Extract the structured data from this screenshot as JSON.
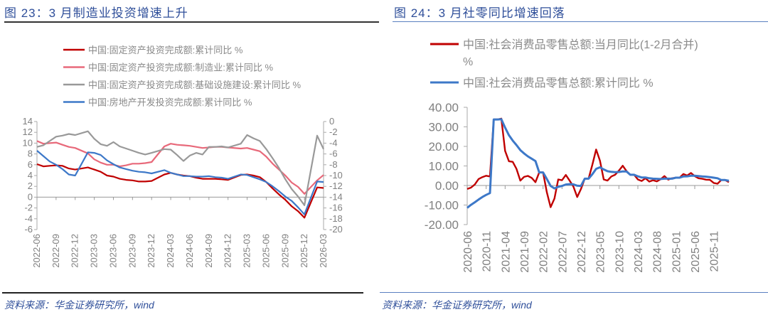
{
  "left": {
    "title": "图 23：3 月制造业投资增速上升",
    "source": "资料来源：华金证券研究所，wind",
    "chart_data": {
      "type": "line",
      "x": [
        "2022-06",
        "2022-07",
        "2022-08",
        "2022-09",
        "2022-10",
        "2022-11",
        "2022-12",
        "2023-02",
        "2023-03",
        "2023-04",
        "2023-05",
        "2023-06",
        "2023-07",
        "2023-08",
        "2023-09",
        "2023-10",
        "2023-11",
        "2023-12",
        "2024-02",
        "2024-03",
        "2024-04",
        "2024-05",
        "2024-06",
        "2024-07",
        "2024-08",
        "2024-09",
        "2024-10",
        "2024-11",
        "2024-12",
        "2025-02",
        "2025-03",
        "2025-04",
        "2025-05",
        "2025-06",
        "2025-07",
        "2025-08",
        "2025-09",
        "2025-10",
        "2025-11",
        "2025-12",
        "2026-02",
        "2026-03"
      ],
      "x_tick_labels": [
        "2022-06",
        "2022-09",
        "2022-12",
        "2023-03",
        "2023-06",
        "2023-09",
        "2023-12",
        "2024-03",
        "2024-06",
        "2024-09",
        "2024-12",
        "2025-03",
        "2025-06",
        "2025-09",
        "2025-12",
        "2026-03"
      ],
      "ylim": [
        -6,
        14
      ],
      "y_ticks": [
        "14",
        "12",
        "10",
        "8",
        "6",
        "4",
        "2",
        "0",
        "-2",
        "-4",
        "-6"
      ],
      "y2lim": [
        -20,
        0
      ],
      "y2_ticks": [
        "0",
        "-2",
        "-4",
        "-6",
        "-8",
        "-10",
        "-12",
        "-14",
        "-16",
        "-18",
        "-20"
      ],
      "legend_placement": "top",
      "series": [
        {
          "name": "中国:固定资产投资完成额:累计同比 %",
          "color": "#c00000",
          "axis": "left",
          "values": [
            6.1,
            5.7,
            5.8,
            5.9,
            5.8,
            5.3,
            5.1,
            5.5,
            5.1,
            4.7,
            4.0,
            3.8,
            3.4,
            3.2,
            3.1,
            2.9,
            2.9,
            3.0,
            4.2,
            4.5,
            4.2,
            4.0,
            3.9,
            3.6,
            3.4,
            3.4,
            3.4,
            3.3,
            3.2,
            4.1,
            4.2,
            4.0,
            3.7,
            2.8,
            1.6,
            0.5,
            -0.5,
            -1.7,
            -2.6,
            -3.8,
            1.8,
            1.7
          ]
        },
        {
          "name": "中国:固定资产投资完成额:制造业:累计同比 %",
          "color": "#e8697a",
          "axis": "left",
          "values": [
            10.4,
            9.9,
            10.0,
            10.1,
            9.7,
            9.3,
            9.1,
            8.1,
            7.0,
            6.4,
            6.0,
            6.0,
            5.7,
            5.9,
            6.2,
            6.2,
            6.3,
            6.5,
            9.4,
            9.9,
            9.7,
            9.6,
            9.5,
            9.3,
            9.1,
            9.2,
            9.3,
            9.3,
            9.2,
            9.0,
            9.1,
            8.8,
            8.5,
            7.5,
            6.2,
            5.1,
            4.0,
            2.7,
            1.9,
            0.6,
            3.1,
            4.1
          ]
        },
        {
          "name": "中国:固定资产投资完成额:基础设施建设:累计同比 %",
          "color": "#999999",
          "axis": "left",
          "values": [
            9.3,
            9.6,
            10.4,
            11.2,
            11.4,
            11.7,
            11.5,
            12.2,
            10.8,
            9.8,
            9.5,
            10.2,
            9.4,
            9.0,
            8.6,
            8.2,
            7.9,
            8.2,
            8.9,
            8.8,
            7.8,
            6.7,
            7.7,
            8.2,
            7.9,
            9.3,
            9.3,
            9.4,
            9.2,
            9.9,
            11.5,
            10.9,
            10.4,
            8.9,
            7.2,
            5.4,
            3.3,
            1.5,
            0.1,
            -1.5,
            11.4,
            8.9
          ]
        },
        {
          "name": "中国:房地产开发投资完成额:累计同比 %",
          "color": "#3d78c8",
          "axis": "right",
          "values": [
            -5.4,
            -6.4,
            -7.4,
            -8.0,
            -8.8,
            -9.8,
            -10.0,
            -5.7,
            -5.8,
            -6.2,
            -7.2,
            -7.9,
            -8.5,
            -8.8,
            -9.1,
            -9.3,
            -9.4,
            -9.6,
            -9.0,
            -9.5,
            -9.8,
            -10.1,
            -10.1,
            -10.2,
            -10.2,
            -10.1,
            -10.3,
            -10.4,
            -10.6,
            -9.8,
            -9.9,
            -10.3,
            -10.7,
            -11.2,
            -12.0,
            -12.9,
            -13.9,
            -14.7,
            -15.9,
            -17.2,
            -11.1,
            -11.2
          ]
        }
      ]
    }
  },
  "right": {
    "title": "图 24：3 月社零同比增速回落",
    "source": "资料来源：华金证券研究所，wind",
    "chart_data": {
      "type": "line",
      "x": [
        "2020-06",
        "2020-07",
        "2020-08",
        "2020-09",
        "2020-10",
        "2020-11",
        "2020-12",
        "2021-01",
        "2021-02",
        "2021-03",
        "2021-04",
        "2021-05",
        "2021-06",
        "2021-07",
        "2021-08",
        "2021-09",
        "2021-10",
        "2021-11",
        "2021-12",
        "2022-01",
        "2022-02",
        "2022-03",
        "2022-04",
        "2022-05",
        "2022-06",
        "2022-07",
        "2022-08",
        "2022-09",
        "2022-10",
        "2022-11",
        "2022-12",
        "2023-01",
        "2023-02",
        "2023-03",
        "2023-04",
        "2023-05",
        "2023-06",
        "2023-07",
        "2023-08",
        "2023-09",
        "2023-10",
        "2023-11",
        "2023-12",
        "2024-01",
        "2024-02",
        "2024-03",
        "2024-04",
        "2024-05",
        "2024-06",
        "2024-07",
        "2024-08",
        "2024-09",
        "2024-10",
        "2024-11",
        "2024-12",
        "2025-01",
        "2025-02",
        "2025-03",
        "2025-04",
        "2025-05",
        "2025-06",
        "2025-07",
        "2025-08",
        "2025-09",
        "2025-10",
        "2025-11",
        "2025-12",
        "2026-01",
        "2026-02",
        "2026-03"
      ],
      "x_tick_labels": [
        "2020-06",
        "2020-11",
        "2021-04",
        "2021-09",
        "2022-02",
        "2022-07",
        "2022-12",
        "2023-05",
        "2023-10",
        "2024-03",
        "2024-08",
        "2025-01",
        "2025-06",
        "2025-11"
      ],
      "ylim": [
        -20,
        40
      ],
      "y_ticks": [
        "40.00",
        "30.00",
        "20.00",
        "10.00",
        "0.00",
        "-10.00",
        "-20.00"
      ],
      "legend_placement": "top",
      "series": [
        {
          "name": "中国:社会消费品零售总额:当月同比(1-2月合并)",
          "name_suffix": "%",
          "color": "#c00000",
          "values": [
            -1.8,
            -1.1,
            0.5,
            3.3,
            4.3,
            5.0,
            4.6,
            33.8,
            33.8,
            34.2,
            17.7,
            12.4,
            12.1,
            8.5,
            2.5,
            4.4,
            4.9,
            3.9,
            1.7,
            6.7,
            6.7,
            -3.5,
            -11.1,
            -6.7,
            3.1,
            2.7,
            5.4,
            2.5,
            -0.5,
            -5.9,
            -1.8,
            3.5,
            3.5,
            10.6,
            18.4,
            12.7,
            3.1,
            2.5,
            4.6,
            5.5,
            7.6,
            10.1,
            7.4,
            5.5,
            5.5,
            3.1,
            2.3,
            3.7,
            2.0,
            2.7,
            2.1,
            3.2,
            4.8,
            3.0,
            3.7,
            4.0,
            4.0,
            5.9,
            5.1,
            6.4,
            4.8,
            3.7,
            3.4,
            3.0,
            2.9,
            1.3,
            0.9,
            2.8,
            2.8,
            1.7
          ]
        },
        {
          "name": "中国:社会消费品零售总额:累计同比 %",
          "color": "#3d78c8",
          "values": [
            -11.4,
            -9.9,
            -8.6,
            -7.2,
            -5.9,
            -4.8,
            -3.9,
            33.8,
            33.8,
            33.9,
            29.6,
            25.7,
            23.0,
            20.7,
            18.1,
            16.4,
            14.9,
            13.7,
            12.5,
            6.7,
            6.7,
            3.3,
            -0.2,
            -1.5,
            -0.7,
            -0.2,
            0.5,
            0.7,
            0.6,
            -0.1,
            -0.2,
            3.5,
            3.5,
            5.8,
            8.5,
            9.3,
            8.2,
            7.3,
            7.0,
            6.8,
            6.9,
            7.2,
            7.2,
            5.5,
            5.5,
            4.7,
            4.1,
            4.1,
            3.7,
            3.5,
            3.4,
            3.3,
            3.5,
            3.5,
            3.5,
            4.0,
            4.0,
            4.6,
            4.7,
            5.0,
            5.0,
            4.8,
            4.6,
            4.5,
            4.3,
            4.0,
            3.7,
            2.8,
            2.8,
            2.4
          ]
        }
      ]
    }
  }
}
